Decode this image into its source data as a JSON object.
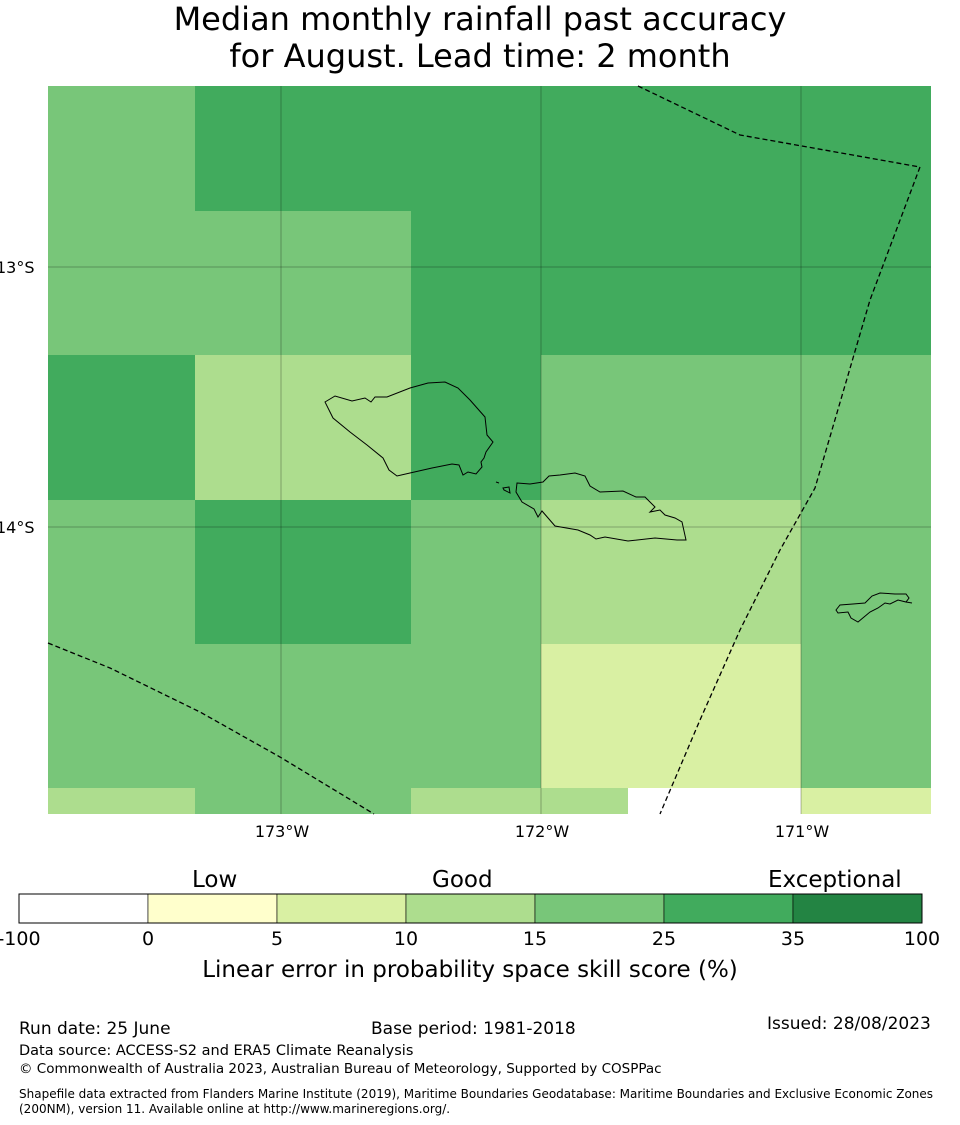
{
  "title": {
    "line1": "Median monthly rainfall past accuracy",
    "line2": "for August. Lead time: 2 month"
  },
  "map": {
    "lat_labels": [
      "13°S",
      "14°S"
    ],
    "lon_labels": [
      "173°W",
      "172°W",
      "171°W"
    ],
    "grid_levels": [
      [
        "15",
        "25",
        "25",
        "25",
        "25",
        "25",
        "25"
      ],
      [
        "15",
        "15",
        "25",
        "25",
        "25",
        "25",
        "25"
      ],
      [
        "25",
        "10",
        "25",
        "15",
        "15",
        "15",
        "15"
      ],
      [
        "15",
        "25",
        "15",
        "10",
        "10",
        "15",
        "15"
      ],
      [
        "15",
        "15",
        "15",
        "5",
        "5",
        "15",
        "15"
      ],
      [
        "10",
        "15",
        "10",
        "10",
        "-100",
        "5",
        "5"
      ]
    ]
  },
  "legend": {
    "categories": [
      "Low",
      "Good",
      "Exceptional"
    ],
    "ticks": [
      "-100",
      "0",
      "5",
      "10",
      "15",
      "25",
      "35",
      "100"
    ],
    "colors": [
      "#ffffff",
      "#ffffcc",
      "#d9f0a3",
      "#addd8e",
      "#78c679",
      "#41ab5d",
      "#238443"
    ],
    "title": "Linear error in probability space skill score (%)"
  },
  "footer": {
    "run_date": "Run date: 25 June",
    "base_period": "Base period: 1981-2018",
    "issued": "Issued: 28/08/2023",
    "source": "Data source: ACCESS-S2 and ERA5 Climate Reanalysis",
    "copyright": "© Commonwealth of Australia 2023, Australian Bureau of Meteorology, Supported by COSPPac",
    "shapefile": "Shapefile data extracted from Flanders Marine Institute (2019), Maritime Boundaries Geodatabase: Maritime Boundaries and Exclusive Economic Zones (200NM), version 11. Available online at http://www.marineregions.org/."
  }
}
